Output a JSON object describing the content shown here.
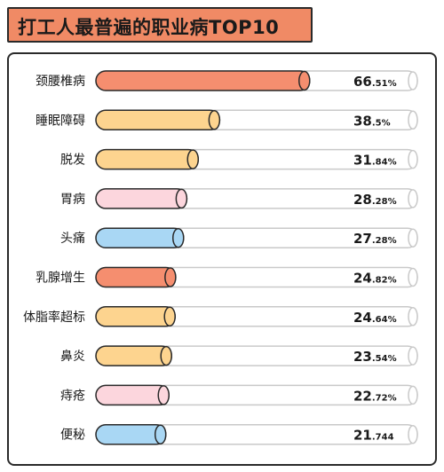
{
  "title": "打工人最普遍的职业病TOP10",
  "colors": {
    "title_bg": "#f08a65",
    "outline": "#2a2a2a",
    "track_outline": "#c9c9c9",
    "bar_palette": [
      "#f58e6f",
      "#fdd48f",
      "#fdd48f",
      "#fcd6dd",
      "#a9d7f4",
      "#f58e6f",
      "#fdd48f",
      "#fdd48f",
      "#fcd6dd",
      "#a9d7f4"
    ]
  },
  "chart_data": {
    "type": "bar",
    "orientation": "horizontal",
    "title": "打工人最普遍的职业病TOP10",
    "categories": [
      "颈腰椎病",
      "睡眠障碍",
      "脱发",
      "胃病",
      "头痛",
      "乳腺增生",
      "体脂率超标",
      "鼻炎",
      "痔疮",
      "便秘"
    ],
    "values": [
      66.51,
      38.5,
      31.84,
      28.28,
      27.28,
      24.82,
      24.64,
      23.54,
      22.72,
      21.744
    ],
    "value_labels": [
      {
        "main": "66",
        "sub": ".51%"
      },
      {
        "main": "38",
        "sub": ".5%"
      },
      {
        "main": "31",
        "sub": ".84%"
      },
      {
        "main": "28",
        "sub": ".28%"
      },
      {
        "main": "27",
        "sub": ".28%"
      },
      {
        "main": "24",
        "sub": ".82%"
      },
      {
        "main": "24",
        "sub": ".64%"
      },
      {
        "main": "23",
        "sub": ".54%"
      },
      {
        "main": "22",
        "sub": ".72%"
      },
      {
        "main": "21",
        "sub": ".744"
      }
    ],
    "xlim": [
      0,
      100
    ],
    "grid": false,
    "legend": "none"
  }
}
